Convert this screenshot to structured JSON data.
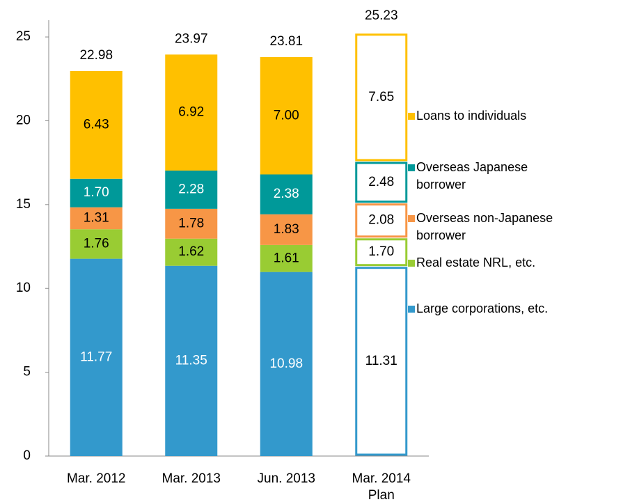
{
  "chart_data": {
    "type": "stacked_bar",
    "categories": [
      "Mar. 2012",
      "Mar. 2013",
      "Jun. 2013",
      "Mar. 2014 Plan"
    ],
    "series": [
      {
        "name": "Large corporations, etc.",
        "color": "#3399cc",
        "label_color": "#ffffff",
        "values": [
          11.77,
          11.35,
          10.98,
          11.31
        ]
      },
      {
        "name": "Real estate NRL, etc.",
        "color": "#99cc33",
        "label_color": "#000000",
        "values": [
          1.76,
          1.62,
          1.61,
          1.7
        ]
      },
      {
        "name": "Overseas non-Japanese borrower",
        "color": "#f79646",
        "label_color": "#000000",
        "values": [
          1.31,
          1.78,
          1.83,
          2.08
        ]
      },
      {
        "name": "Overseas Japanese borrower",
        "color": "#009999",
        "label_color": "#ffffff",
        "values": [
          1.7,
          2.28,
          2.38,
          2.48
        ]
      },
      {
        "name": "Loans to individuals",
        "color": "#ffc000",
        "label_color": "#000000",
        "values": [
          6.43,
          6.92,
          7.0,
          7.65
        ]
      }
    ],
    "value_labels": [
      [
        "11.77",
        "11.35",
        "10.98",
        "11.31"
      ],
      [
        "1.76",
        "1.62",
        "1.61",
        "1.70"
      ],
      [
        "1.31",
        "1.78",
        "1.83",
        "2.08"
      ],
      [
        "1.70",
        "2.28",
        "2.38",
        "2.48"
      ],
      [
        "6.43",
        "6.92",
        "7.00",
        "7.65"
      ]
    ],
    "totals": [
      "22.98",
      "23.97",
      "23.81",
      "25.23"
    ],
    "hollow": [
      false,
      false,
      false,
      true
    ],
    "ylim": [
      0,
      26
    ],
    "yticks": [
      0,
      5,
      10,
      15,
      20,
      25
    ],
    "grid": false,
    "legend": "right"
  }
}
